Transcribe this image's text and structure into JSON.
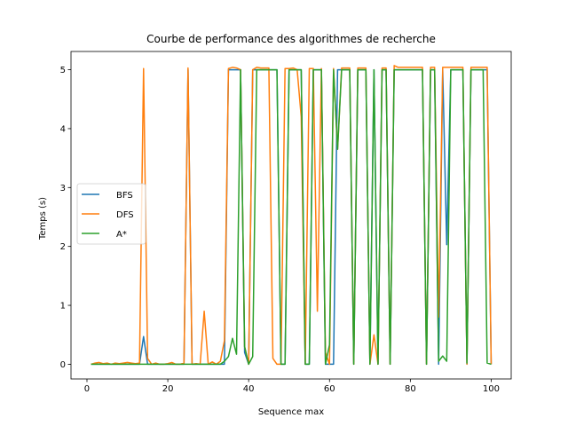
{
  "chart_data": {
    "type": "line",
    "title": "Courbe de performance des algorithmes de recherche",
    "xlabel": "Sequence max",
    "ylabel": "Temps (s)",
    "xlim": [
      -3.95,
      104.95
    ],
    "ylim": [
      -0.25,
      5.31
    ],
    "xticks": [
      0,
      20,
      40,
      60,
      80,
      100
    ],
    "yticks": [
      0,
      1,
      2,
      3,
      4,
      5
    ],
    "legend": "center-left",
    "x": [
      1,
      2,
      3,
      4,
      5,
      6,
      7,
      8,
      9,
      10,
      11,
      12,
      13,
      14,
      15,
      16,
      17,
      18,
      19,
      20,
      21,
      22,
      23,
      24,
      25,
      26,
      27,
      28,
      29,
      30,
      31,
      32,
      33,
      34,
      35,
      36,
      37,
      38,
      39,
      40,
      41,
      42,
      43,
      44,
      45,
      46,
      47,
      48,
      49,
      50,
      51,
      52,
      53,
      54,
      55,
      56,
      57,
      58,
      59,
      60,
      61,
      62,
      63,
      64,
      65,
      66,
      67,
      68,
      69,
      70,
      71,
      72,
      73,
      74,
      75,
      76,
      77,
      78,
      79,
      80,
      81,
      82,
      83,
      84,
      85,
      86,
      87,
      88,
      89,
      90,
      91,
      92,
      93,
      94,
      95,
      96,
      97,
      98,
      99,
      100
    ],
    "series": [
      {
        "name": "BFS",
        "color": "#1f77b4",
        "values": [
          0,
          0,
          0,
          0,
          0,
          0,
          0,
          0,
          0,
          0,
          0,
          0,
          0,
          0.47,
          0,
          0,
          0,
          0,
          0,
          0,
          0,
          0,
          0,
          0,
          5.0,
          0,
          0,
          0,
          0,
          0,
          0,
          0,
          0,
          0,
          5.0,
          5.0,
          5.0,
          5.0,
          0.2,
          0,
          5.0,
          5.0,
          5.0,
          5.0,
          5.0,
          5.0,
          5.0,
          0,
          0,
          5.0,
          5.0,
          5.0,
          5.0,
          0,
          0,
          5.0,
          5.0,
          5.0,
          0,
          0,
          0,
          5.0,
          5.0,
          5.0,
          5.0,
          0,
          5.0,
          5.0,
          5.0,
          0,
          5.0,
          0,
          5.0,
          5.0,
          0,
          5.0,
          5.0,
          5.0,
          5.0,
          5.0,
          5.0,
          5.0,
          5.0,
          0,
          5.0,
          5.0,
          0,
          5.0,
          2.03,
          5.0,
          5.0,
          5.0,
          5.0,
          0,
          5.0,
          5.0,
          5.0,
          5.0,
          5.0,
          0
        ]
      },
      {
        "name": "DFS",
        "color": "#ff7f0e",
        "values": [
          0,
          0.02,
          0.03,
          0.01,
          0.02,
          0,
          0.02,
          0.01,
          0.02,
          0.03,
          0.02,
          0.01,
          0.02,
          5.02,
          0.1,
          0,
          0.02,
          0,
          0,
          0.01,
          0.03,
          0,
          0,
          0.02,
          5.03,
          0,
          0.01,
          0,
          0.9,
          0,
          0.04,
          0,
          0.05,
          0.4,
          5.02,
          5.04,
          5.03,
          5.0,
          0.3,
          0,
          5.0,
          5.04,
          5.03,
          5.03,
          5.03,
          0.1,
          0,
          0,
          5.02,
          5.02,
          5.03,
          5.0,
          4.2,
          0,
          5.02,
          5.02,
          0.9,
          5.02,
          0.2,
          0,
          5.02,
          3.65,
          5.03,
          5.03,
          5.03,
          0,
          5.03,
          5.03,
          5.03,
          0,
          0.5,
          0,
          5.03,
          5.03,
          0,
          5.07,
          5.04,
          5.04,
          5.04,
          5.04,
          5.04,
          5.04,
          5.04,
          0,
          5.04,
          5.04,
          0.8,
          5.04,
          5.04,
          5.04,
          5.04,
          5.04,
          5.04,
          0,
          5.04,
          5.04,
          5.04,
          5.04,
          5.04,
          0
        ]
      },
      {
        "name": "A*",
        "color": "#2ca02c",
        "values": [
          0,
          0,
          0,
          0,
          0,
          0,
          0,
          0,
          0,
          0,
          0,
          0,
          0,
          0,
          0,
          0,
          0,
          0,
          0,
          0,
          0,
          0,
          0,
          0,
          0,
          0,
          0,
          0,
          0,
          0,
          0,
          0,
          0,
          0.05,
          0.13,
          0.44,
          0.17,
          5.0,
          0.3,
          0,
          0.13,
          5.0,
          5.0,
          5.0,
          5.0,
          5.0,
          5.0,
          0,
          0,
          5.0,
          5.0,
          5.0,
          5.0,
          0,
          0,
          5.0,
          5.0,
          5.0,
          0,
          0.33,
          5.0,
          3.65,
          5.0,
          5.0,
          5.0,
          0,
          5.0,
          5.0,
          5.0,
          0,
          5.0,
          0,
          5.0,
          5.0,
          0,
          5.0,
          5.0,
          5.0,
          5.0,
          5.0,
          5.0,
          5.0,
          5.0,
          0,
          5.0,
          5.0,
          0.05,
          0.14,
          0.05,
          5.0,
          5.0,
          5.0,
          5.0,
          0.02,
          5.0,
          5.0,
          5.0,
          5.0,
          0.02,
          0
        ]
      }
    ]
  }
}
